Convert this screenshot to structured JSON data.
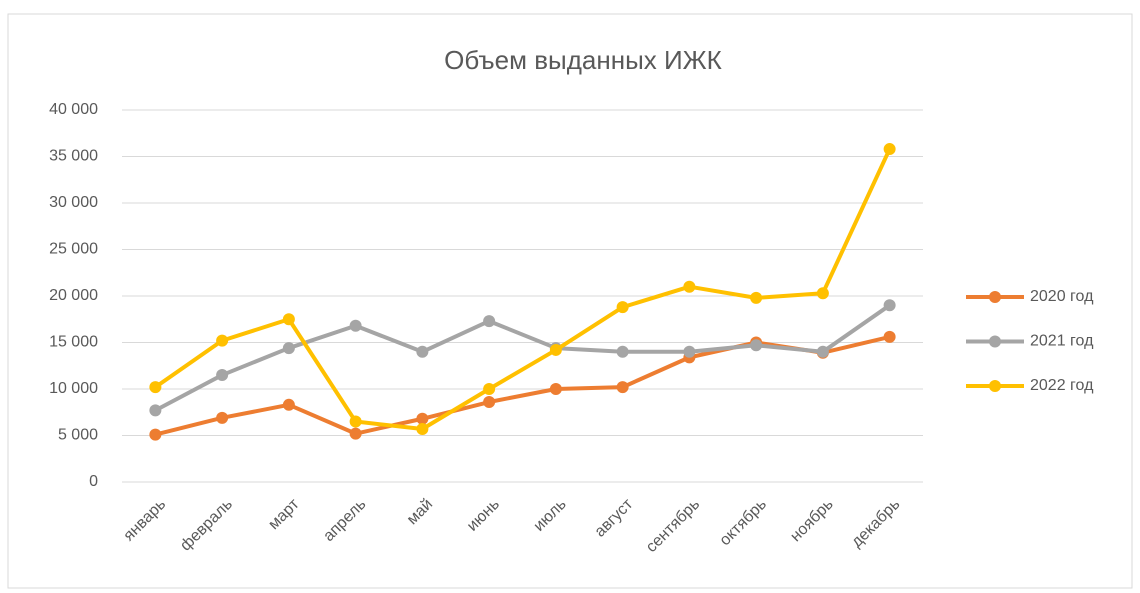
{
  "chart_data": {
    "type": "line",
    "title": "Объем выданных ИЖК",
    "categories": [
      "январь",
      "февраль",
      "март",
      "апрель",
      "май",
      "июнь",
      "июль",
      "август",
      "сентябрь",
      "октябрь",
      "ноябрь",
      "декабрь"
    ],
    "series": [
      {
        "name": "2020 год",
        "color": "#ed7d31",
        "values": [
          5100,
          6900,
          8300,
          5200,
          6800,
          8600,
          10000,
          10200,
          13400,
          15000,
          13900,
          15600
        ]
      },
      {
        "name": "2021 год",
        "color": "#a5a5a5",
        "values": [
          7700,
          11500,
          14400,
          16800,
          14000,
          17300,
          14400,
          14000,
          14000,
          14700,
          14000,
          19000
        ]
      },
      {
        "name": "2022 год",
        "color": "#ffc000",
        "values": [
          10200,
          15200,
          17500,
          6500,
          5700,
          10000,
          14200,
          18800,
          21000,
          19800,
          20300,
          35800
        ]
      }
    ],
    "ylim": [
      0,
      40000
    ],
    "yticks": [
      0,
      {
        "value": 5000,
        "label": "5 000"
      },
      {
        "value": 10000,
        "label": "10 000"
      },
      {
        "value": 15000,
        "label": "15 000"
      },
      {
        "value": 20000,
        "label": "20 000"
      },
      {
        "value": 25000,
        "label": "25 000"
      },
      {
        "value": 30000,
        "label": "30 000"
      },
      {
        "value": 35000,
        "label": "35 000"
      },
      {
        "value": 40000,
        "label": "40 000"
      }
    ],
    "grid": true,
    "legend": "right"
  }
}
